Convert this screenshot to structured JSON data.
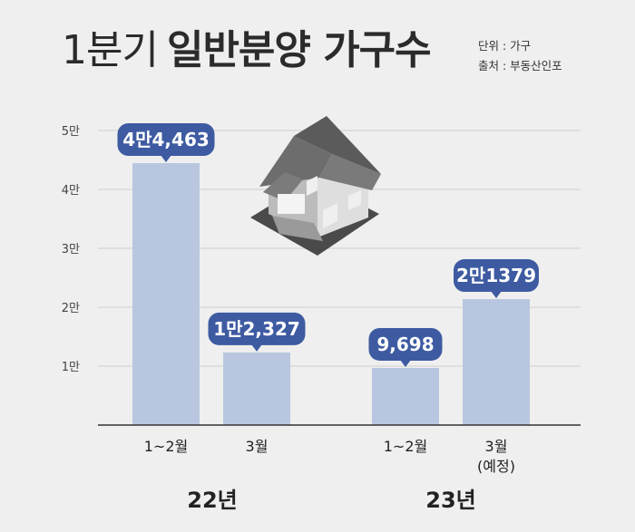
{
  "header": {
    "title_light": "1분기",
    "title_bold": "일반분양 가구수",
    "unit": "단위 : 가구",
    "source": "출처 :  부동산인포"
  },
  "chart_data": {
    "type": "bar",
    "title": "1분기 일반분양 가구수",
    "unit": "가구",
    "ylim": [
      0,
      50000
    ],
    "yticks": [
      10000,
      20000,
      30000,
      40000,
      50000
    ],
    "ytick_labels": [
      "1만",
      "2만",
      "3만",
      "4만",
      "5만"
    ],
    "grid": true,
    "groups": [
      {
        "label": "22년",
        "categories": [
          "1~2월",
          "3월"
        ]
      },
      {
        "label": "23년",
        "categories": [
          "1~2월",
          "3월\n(예정)"
        ]
      }
    ],
    "categories": [
      "1~2월",
      "3월",
      "1~2월",
      "3월\n(예정)"
    ],
    "values": [
      44463,
      12327,
      9698,
      21379
    ],
    "data_labels": [
      "4만4,463",
      "1만2,327",
      "9,698",
      "2만1379"
    ],
    "colors": {
      "bar": "#b9c6e0",
      "badge": "#3e5ba2",
      "grid": "#cfcfcf",
      "axis": "#333333"
    }
  }
}
